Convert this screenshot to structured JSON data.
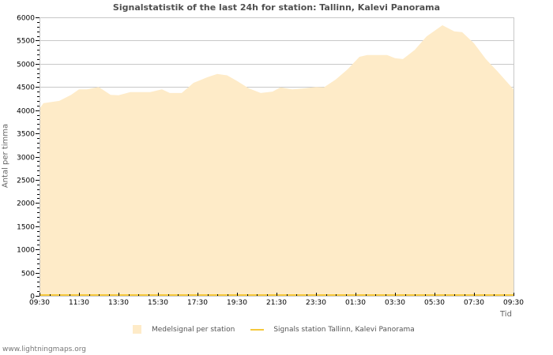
{
  "title": "Signalstatistik of the last 24h for station: Tallinn, Kalevi Panorama",
  "yaxis_label": "Antal per timma",
  "xaxis_label": "Tid",
  "legend": {
    "area_label": "Medelsignal per station",
    "line_label": "Signals station Tallinn, Kalevi Panorama"
  },
  "footer": "www.lightningmaps.org",
  "colors": {
    "area": "#feebc8",
    "line": "#f5c83c",
    "grid": "#c8c8c8"
  },
  "chart_data": {
    "type": "area",
    "title": "Signalstatistik of the last 24h for station: Tallinn, Kalevi Panorama",
    "xlabel": "Tid",
    "ylabel": "Antal per timma",
    "ylim": [
      0,
      6000
    ],
    "y_ticks": [
      0,
      500,
      1000,
      1500,
      2000,
      2500,
      3000,
      3500,
      4000,
      4500,
      5000,
      5500,
      6000
    ],
    "x_tick_labels": [
      "09:30",
      "11:30",
      "13:30",
      "15:30",
      "17:30",
      "19:30",
      "21:30",
      "23:30",
      "01:30",
      "03:30",
      "05:30",
      "07:30",
      "09:30"
    ],
    "grid": true,
    "legend_position": "bottom",
    "series": [
      {
        "name": "Medelsignal per station",
        "style": "area",
        "x_hours": [
          0,
          0.2,
          1.0,
          1.6,
          2.0,
          2.4,
          3.0,
          3.6,
          4.0,
          4.6,
          5.6,
          6.2,
          6.6,
          7.2,
          7.8,
          8.5,
          9.0,
          9.5,
          10.0,
          10.6,
          11.2,
          11.8,
          12.2,
          12.8,
          13.4,
          14.0,
          14.4,
          15.0,
          15.6,
          16.2,
          16.6,
          17.6,
          18.0,
          18.4,
          19.0,
          19.6,
          20.4,
          21.0,
          21.4,
          22.0,
          22.6,
          23.2,
          24.0
        ],
        "values": [
          4030,
          4150,
          4200,
          4330,
          4450,
          4450,
          4500,
          4330,
          4320,
          4390,
          4390,
          4450,
          4370,
          4370,
          4590,
          4710,
          4780,
          4750,
          4630,
          4470,
          4370,
          4400,
          4490,
          4450,
          4470,
          4500,
          4490,
          4660,
          4880,
          5150,
          5190,
          5190,
          5120,
          5100,
          5300,
          5590,
          5830,
          5700,
          5680,
          5440,
          5100,
          4830,
          4450
        ]
      },
      {
        "name": "Signals station Tallinn, Kalevi Panorama",
        "style": "line",
        "x_hours": [
          0,
          24
        ],
        "values": [
          0,
          0
        ]
      }
    ]
  }
}
